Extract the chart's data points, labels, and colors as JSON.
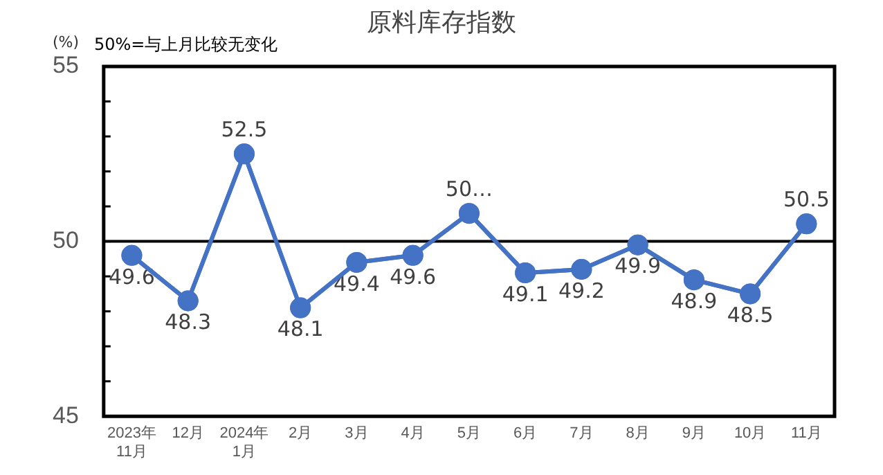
{
  "chart_data": {
    "type": "line",
    "title": "原料库存指数",
    "ylabel": "(%)",
    "annotations": [
      "50%=与上月比较无变化"
    ],
    "categories": [
      "2023年\n11月",
      "12月",
      "2024年\n1月",
      "2月",
      "3月",
      "4月",
      "5月",
      "6月",
      "7月",
      "8月",
      "9月",
      "10月",
      "11月"
    ],
    "series": [
      {
        "color": "#4472c4",
        "values": [
          49.6,
          48.3,
          52.5,
          48.1,
          49.4,
          49.6,
          50.8,
          49.1,
          49.2,
          49.9,
          48.9,
          48.5,
          50.5
        ],
        "value_labels": [
          "49.6",
          "48.3",
          "52.5",
          "48.1",
          "49.4",
          "49.6",
          "50…",
          "49.1",
          "49.2",
          "49.9",
          "48.9",
          "48.5",
          "50.5"
        ]
      }
    ],
    "ylim": [
      45,
      55
    ],
    "yticks": [
      45,
      {
        "value": 46,
        "label": null
      },
      {
        "value": 47,
        "label": null
      },
      {
        "value": 48,
        "label": null
      },
      {
        "value": 49,
        "label": null
      },
      50,
      {
        "value": 51,
        "label": null
      },
      {
        "value": 52,
        "label": null
      },
      {
        "value": 53,
        "label": null
      },
      {
        "value": 54,
        "label": null
      },
      55
    ],
    "ref_lines": [
      {
        "axis": "y",
        "value": 50,
        "color": "#000000"
      }
    ],
    "grid": false,
    "legend": false,
    "marker": "circle",
    "line_style": "solid"
  }
}
